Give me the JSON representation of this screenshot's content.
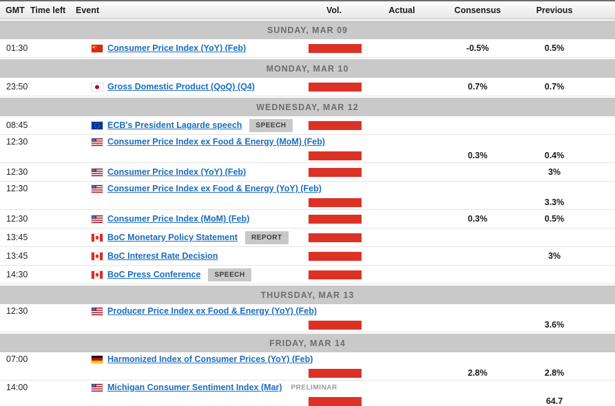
{
  "columns": {
    "gmt": "GMT",
    "time_left": "Time left",
    "event": "Event",
    "vol": "Vol.",
    "actual": "Actual",
    "consensus": "Consensus",
    "previous": "Previous"
  },
  "colors": {
    "volume_bar": "#dc3226",
    "event_link": "#1a6dc0",
    "section_band_bg": "#c9c9c9",
    "section_band_text": "#6d6d6d",
    "badge_bg": "#c8c8c8"
  },
  "sections": [
    {
      "date_label": "SUNDAY, MAR 09",
      "events": [
        {
          "time": "01:30",
          "country": "China",
          "flag": "cn",
          "title": "Consumer Price Index (YoY) (Feb)",
          "badge": "",
          "badge_type": "",
          "tall": false,
          "actual": "",
          "consensus": "-0.5%",
          "previous": "0.5%"
        }
      ]
    },
    {
      "date_label": "MONDAY, MAR 10",
      "events": [
        {
          "time": "23:50",
          "country": "Japan",
          "flag": "jp",
          "title": "Gross Domestic Product (QoQ) (Q4)",
          "badge": "",
          "badge_type": "",
          "tall": false,
          "actual": "",
          "consensus": "0.7%",
          "previous": "0.7%"
        }
      ]
    },
    {
      "date_label": "WEDNESDAY, MAR 12",
      "events": [
        {
          "time": "08:45",
          "country": "European Union",
          "flag": "eu",
          "title": "ECB's President Lagarde speech",
          "badge": "SPEECH",
          "badge_type": "boxed",
          "tall": false,
          "actual": "",
          "consensus": "",
          "previous": ""
        },
        {
          "time": "12:30",
          "country": "United States",
          "flag": "us",
          "title": "Consumer Price Index ex Food & Energy (MoM) (Feb)",
          "badge": "",
          "badge_type": "",
          "tall": true,
          "actual": "",
          "consensus": "0.3%",
          "previous": "0.4%"
        },
        {
          "time": "12:30",
          "country": "United States",
          "flag": "us",
          "title": "Consumer Price Index (YoY) (Feb)",
          "badge": "",
          "badge_type": "",
          "tall": false,
          "actual": "",
          "consensus": "",
          "previous": "3%"
        },
        {
          "time": "12:30",
          "country": "United States",
          "flag": "us",
          "title": "Consumer Price Index ex Food & Energy (YoY) (Feb)",
          "badge": "",
          "badge_type": "",
          "tall": true,
          "actual": "",
          "consensus": "",
          "previous": "3.3%"
        },
        {
          "time": "12:30",
          "country": "United States",
          "flag": "us",
          "title": "Consumer Price Index (MoM) (Feb)",
          "badge": "",
          "badge_type": "",
          "tall": false,
          "actual": "",
          "consensus": "0.3%",
          "previous": "0.5%"
        },
        {
          "time": "13:45",
          "country": "Canada",
          "flag": "ca",
          "title": "BoC Monetary Policy Statement",
          "badge": "REPORT",
          "badge_type": "boxed",
          "tall": false,
          "actual": "",
          "consensus": "",
          "previous": ""
        },
        {
          "time": "13:45",
          "country": "Canada",
          "flag": "ca",
          "title": "BoC Interest Rate Decision",
          "badge": "",
          "badge_type": "",
          "tall": false,
          "actual": "",
          "consensus": "",
          "previous": "3%"
        },
        {
          "time": "14:30",
          "country": "Canada",
          "flag": "ca",
          "title": "BoC Press Conference",
          "badge": "SPEECH",
          "badge_type": "boxed",
          "tall": false,
          "actual": "",
          "consensus": "",
          "previous": ""
        }
      ]
    },
    {
      "date_label": "THURSDAY, MAR 13",
      "events": [
        {
          "time": "12:30",
          "country": "United States",
          "flag": "us",
          "title": "Producer Price Index ex Food & Energy (YoY) (Feb)",
          "badge": "",
          "badge_type": "",
          "tall": true,
          "actual": "",
          "consensus": "",
          "previous": "3.6%"
        }
      ]
    },
    {
      "date_label": "FRIDAY, MAR 14",
      "events": [
        {
          "time": "07:00",
          "country": "Germany",
          "flag": "de",
          "title": "Harmonized Index of Consumer Prices (YoY) (Feb)",
          "badge": "",
          "badge_type": "",
          "tall": true,
          "actual": "",
          "consensus": "2.8%",
          "previous": "2.8%"
        },
        {
          "time": "14:00",
          "country": "United States",
          "flag": "us",
          "title": "Michigan Consumer Sentiment Index (Mar)",
          "badge": "PRELIMINAR",
          "badge_type": "plain",
          "tall": true,
          "actual": "",
          "consensus": "",
          "previous": "64.7"
        }
      ]
    }
  ]
}
